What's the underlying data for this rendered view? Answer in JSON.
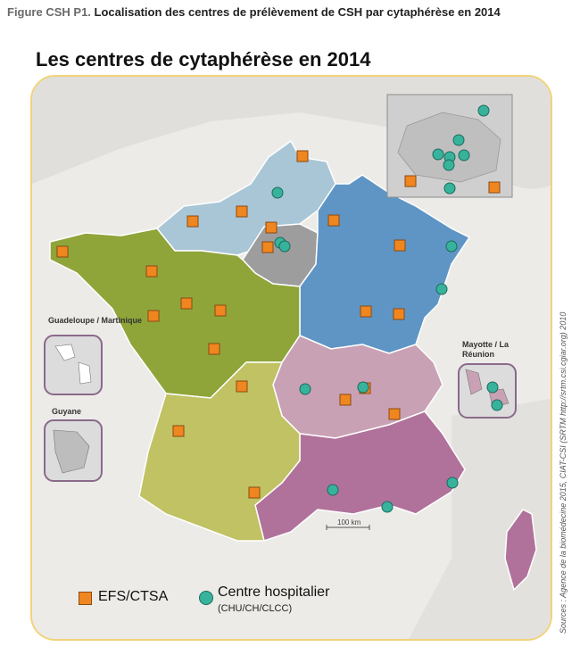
{
  "caption": {
    "label": "Figure CSH P1.",
    "text": "Localisation des centres de prélèvement de CSH par cytaphérèse en 2014"
  },
  "map": {
    "title": "Les centres de cytaphérèse en 2014",
    "scale_label": "100 km",
    "insets": {
      "guadeloupe": "Guadeloupe / Martinique",
      "guyane": "Guyane",
      "mayotte": "Mayotte / La Réunion"
    },
    "colors": {
      "frame_border": "#f2d27a",
      "efs_marker": "#f0861f",
      "hospital_marker": "#37b39c",
      "region_northwest": "#a9c6d6",
      "region_paris": "#9d9d9d",
      "region_east": "#5f95c4",
      "region_west": "#8fa53a",
      "region_southeast_light": "#c9a1b5",
      "region_southeast_dark": "#b0729a",
      "region_southwest": "#c0c264"
    }
  },
  "legend": {
    "efs_label": "EFS/CTSA",
    "hospital_label": "Centre hospitalier",
    "hospital_sub": "(CHU/CH/CLCC)"
  },
  "source": "Sources : Agence de la biomédecine 2015, CIAT-CSI (SRTM http://srtm.csi.cgiar.org) 2010"
}
